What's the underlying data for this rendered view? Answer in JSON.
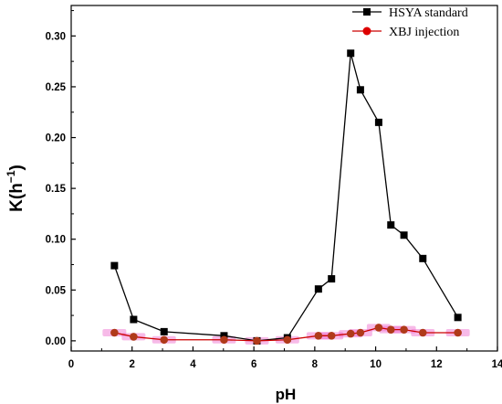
{
  "chart_data": {
    "type": "line",
    "title": "",
    "xlabel": "pH",
    "ylabel": "K(h",
    "ylabel_sup": "−1",
    "ylabel_close": ")",
    "xlim": [
      0,
      14
    ],
    "ylim": [
      -0.01,
      0.33
    ],
    "xticks": [
      {
        "value": 0,
        "label": "0"
      },
      {
        "value": 2,
        "label": "2"
      },
      {
        "value": 4,
        "label": "4"
      },
      {
        "value": 6,
        "label": "6"
      },
      {
        "value": 8,
        "label": "8"
      },
      {
        "value": 10,
        "label": "10"
      },
      {
        "value": 12,
        "label": "12"
      },
      {
        "value": 14,
        "label": "14"
      }
    ],
    "yticks": [
      {
        "value": 0.0,
        "label": "0.00"
      },
      {
        "value": 0.05,
        "label": "0.05"
      },
      {
        "value": 0.1,
        "label": "0.10"
      },
      {
        "value": 0.15,
        "label": "0.15"
      },
      {
        "value": 0.2,
        "label": "0.20"
      },
      {
        "value": 0.25,
        "label": "0.25"
      },
      {
        "value": 0.3,
        "label": "0.30"
      }
    ],
    "grid": false,
    "legend_position": "top-right",
    "series": [
      {
        "name": "HSYA standard",
        "color": "#000000",
        "marker": "square",
        "x": [
          1.42,
          2.05,
          3.05,
          5.02,
          6.1,
          7.1,
          8.12,
          8.55,
          9.18,
          9.5,
          10.1,
          10.5,
          10.93,
          11.55,
          12.7
        ],
        "y": [
          0.074,
          0.021,
          0.009,
          0.005,
          0.0,
          0.003,
          0.051,
          0.061,
          0.283,
          0.247,
          0.215,
          0.114,
          0.104,
          0.081,
          0.023
        ]
      },
      {
        "name": "XBJ injection",
        "color": "#cc0000",
        "marker": "circle",
        "error_color": "#ee66cc",
        "x": [
          1.42,
          2.05,
          3.05,
          5.02,
          6.1,
          7.1,
          8.12,
          8.55,
          9.18,
          9.5,
          10.1,
          10.5,
          10.93,
          11.55,
          12.7
        ],
        "y": [
          0.008,
          0.004,
          0.001,
          0.001,
          0.0,
          0.001,
          0.005,
          0.005,
          0.007,
          0.008,
          0.013,
          0.011,
          0.011,
          0.008,
          0.008
        ]
      }
    ]
  }
}
